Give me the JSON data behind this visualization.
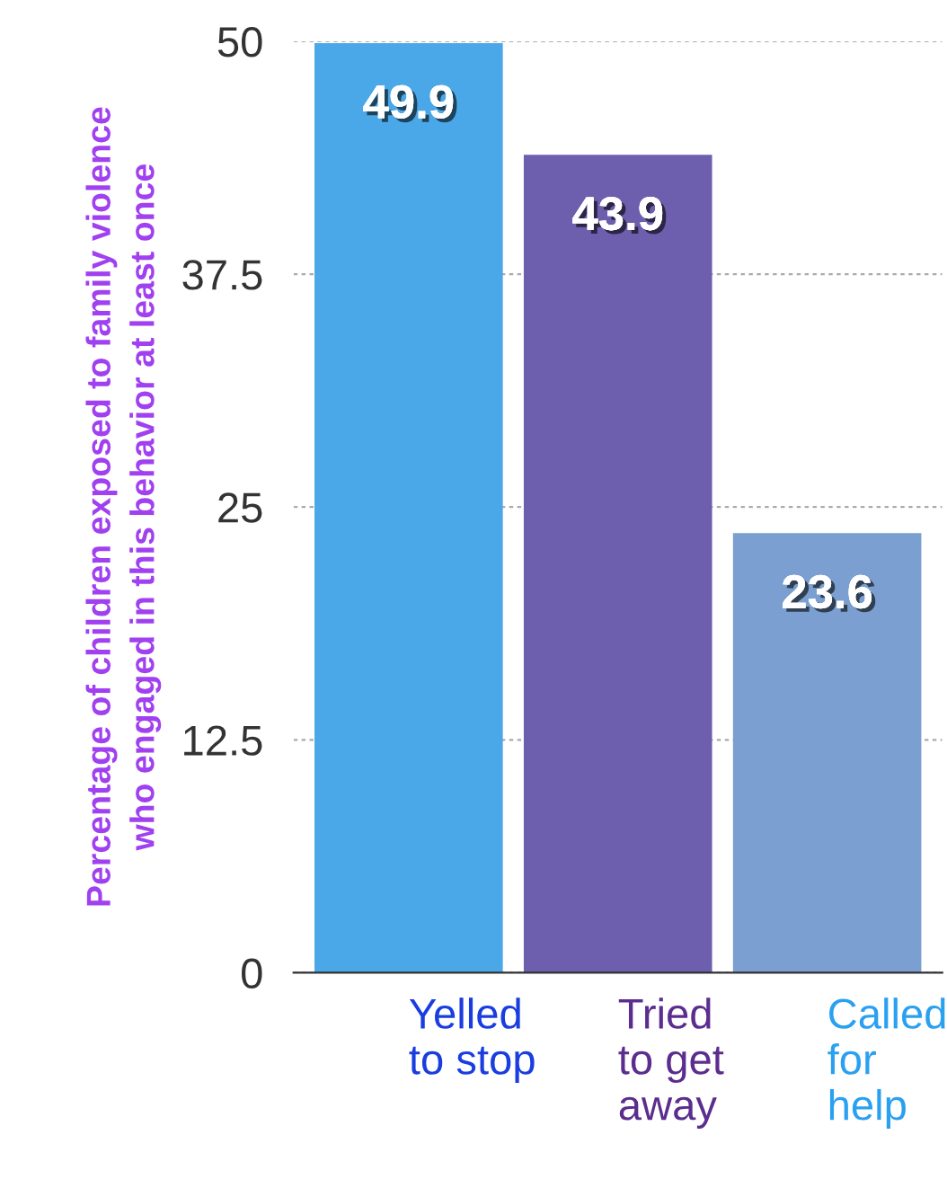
{
  "chart_data": {
    "type": "bar",
    "ylabel": "Percentage of children exposed to family violence\nwho engaged in this behavior at least once",
    "categories": [
      "Yelled\nto stop",
      "Tried\nto get\naway",
      "Called\nfor\nhelp"
    ],
    "values": [
      49.9,
      43.9,
      23.6
    ],
    "colors": [
      "#4aa8e8",
      "#6e5fae",
      "#7a9fd0"
    ],
    "ylim": [
      0,
      50
    ],
    "yticks": [
      0,
      12.5,
      25,
      37.5,
      50
    ],
    "grid": "y",
    "data_labels": true
  }
}
